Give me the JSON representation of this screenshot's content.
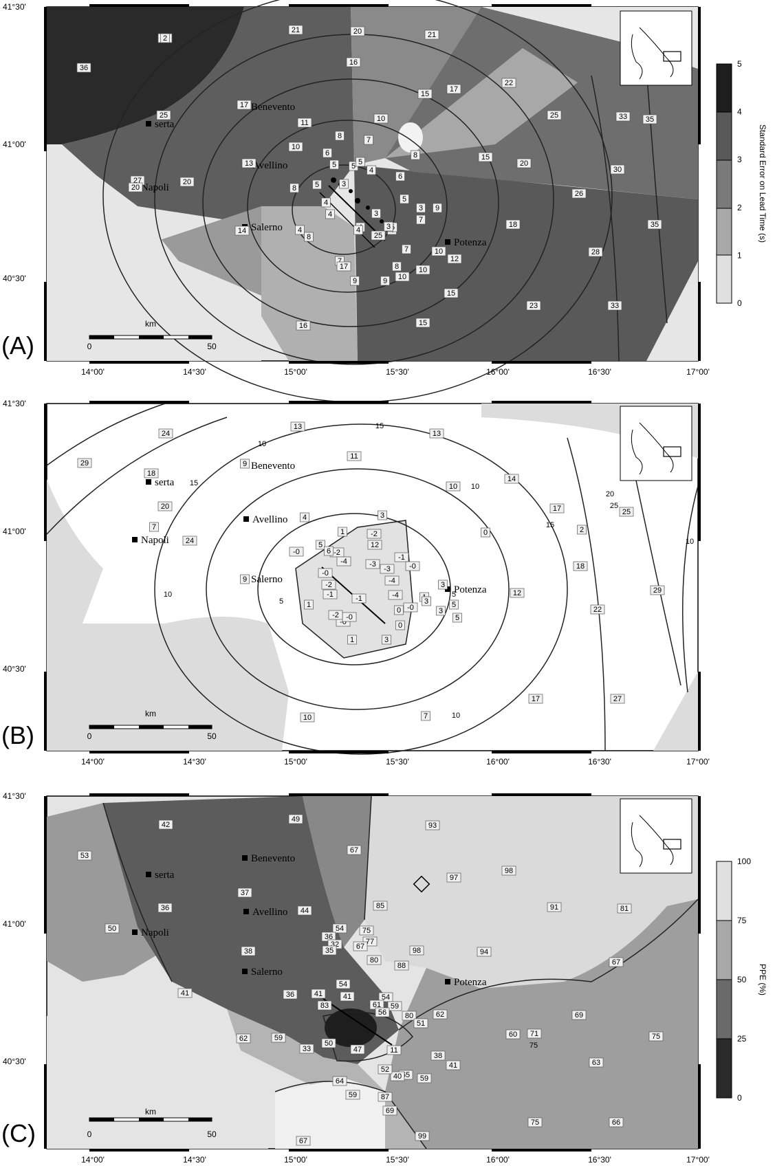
{
  "panels": [
    {
      "id": "A",
      "label": "(A)",
      "lat_labels": [
        "41°30'",
        "41°00'",
        "40°30'"
      ],
      "lon_labels": [
        "14°00'",
        "14°30'",
        "15°00'",
        "15°30'",
        "16°00'",
        "16°30'",
        "17°00'"
      ],
      "scalebar": {
        "unit": "km",
        "min": "0",
        "max": "50"
      },
      "cities": [
        "Benevento",
        "serta",
        "Avellino",
        "Napoli",
        "Salerno",
        "Potenza"
      ],
      "colorbar": {
        "title": "Standard Error on Lead Time (s)",
        "ticks": [
          "0",
          "1",
          "2",
          "3",
          "4",
          "5"
        ]
      },
      "values": [
        "30",
        "21",
        "20",
        "21",
        "36",
        "16",
        "17",
        "15",
        "17",
        "22",
        "25",
        "11",
        "10",
        "8",
        "7",
        "25",
        "33",
        "35",
        "10",
        "6",
        "5",
        "5",
        "5",
        "4",
        "6",
        "8",
        "15",
        "30",
        "20",
        "13",
        "27",
        "20",
        "20",
        "8",
        "5",
        "3",
        "4",
        "5",
        "9",
        "26",
        "4",
        "4",
        "3",
        "7",
        "4",
        "4",
        "5",
        "18",
        "35",
        "14",
        "8",
        "4",
        "7",
        "10",
        "12",
        "28",
        "7",
        "8",
        "9",
        "9",
        "10",
        "10",
        "15",
        "23",
        "33",
        "16",
        "15",
        "17",
        "25",
        "3",
        "3",
        "2"
      ],
      "contour_labels": []
    },
    {
      "id": "B",
      "label": "(B)",
      "lat_labels": [
        "41°30'",
        "41°00'",
        "40°30'"
      ],
      "lon_labels": [
        "14°00'",
        "14°30'",
        "15°00'",
        "15°30'",
        "16°00'",
        "16°30'",
        "17°00'"
      ],
      "scalebar": {
        "unit": "km",
        "min": "0",
        "max": "50"
      },
      "cities": [
        "Benevento",
        "serta",
        "Avellino",
        "Napoli",
        "Salerno",
        "Potenza"
      ],
      "values": [
        "24",
        "13",
        "13",
        "29",
        "11",
        "10",
        "14",
        "17",
        "25",
        "18",
        "9",
        "4",
        "3",
        "1",
        "-2",
        "0",
        "2",
        "7",
        "24",
        "20",
        "12",
        "5",
        "-2",
        "-3",
        "-1",
        "-0",
        "-4",
        "-3",
        "-0",
        "18",
        "-0",
        "-2",
        "3",
        "12",
        "29",
        "9",
        "-1",
        "-1",
        "-4",
        "1",
        "5",
        "1",
        "-0",
        "3",
        "22",
        "-0",
        "0",
        "3",
        "5",
        "1",
        "3",
        "17",
        "27",
        "10",
        "7",
        "6",
        "0",
        "-0",
        "-2",
        "-4"
      ],
      "contour_labels": [
        "15",
        "10",
        "15",
        "10",
        "10",
        "15",
        "20",
        "25",
        "5",
        "5",
        "10",
        "10"
      ]
    },
    {
      "id": "C",
      "label": "(C)",
      "lat_labels": [
        "41°30'",
        "41°00'",
        "40°30'"
      ],
      "lon_labels": [
        "14°00'",
        "14°30'",
        "15°00'",
        "15°30'",
        "16°00'",
        "16°30'",
        "17°00'"
      ],
      "scalebar": {
        "unit": "km",
        "min": "0",
        "max": "50"
      },
      "cities": [
        "Benevento",
        "serta",
        "Avellino",
        "Napoli",
        "Salerno",
        "Potenza"
      ],
      "colorbar": {
        "title": "PPE (%)",
        "ticks": [
          "0",
          "25",
          "50",
          "75",
          "100"
        ]
      },
      "values": [
        "42",
        "49",
        "93",
        "53",
        "67",
        "98",
        "97",
        "37",
        "44",
        "85",
        "91",
        "81",
        "36",
        "50",
        "54",
        "75",
        "77",
        "98",
        "94",
        "38",
        "36",
        "32",
        "35",
        "67",
        "80",
        "88",
        "67",
        "54",
        "41",
        "41",
        "36",
        "41",
        "54",
        "80",
        "62",
        "69",
        "83",
        "61",
        "59",
        "56",
        "51",
        "60",
        "71",
        "75",
        "62",
        "59",
        "50",
        "33",
        "47",
        "11",
        "38",
        "63",
        "65",
        "41",
        "64",
        "40",
        "59",
        "59",
        "87",
        "69",
        "75",
        "66",
        "67",
        "99",
        "52"
      ],
      "contour_labels": [
        "75"
      ]
    }
  ]
}
